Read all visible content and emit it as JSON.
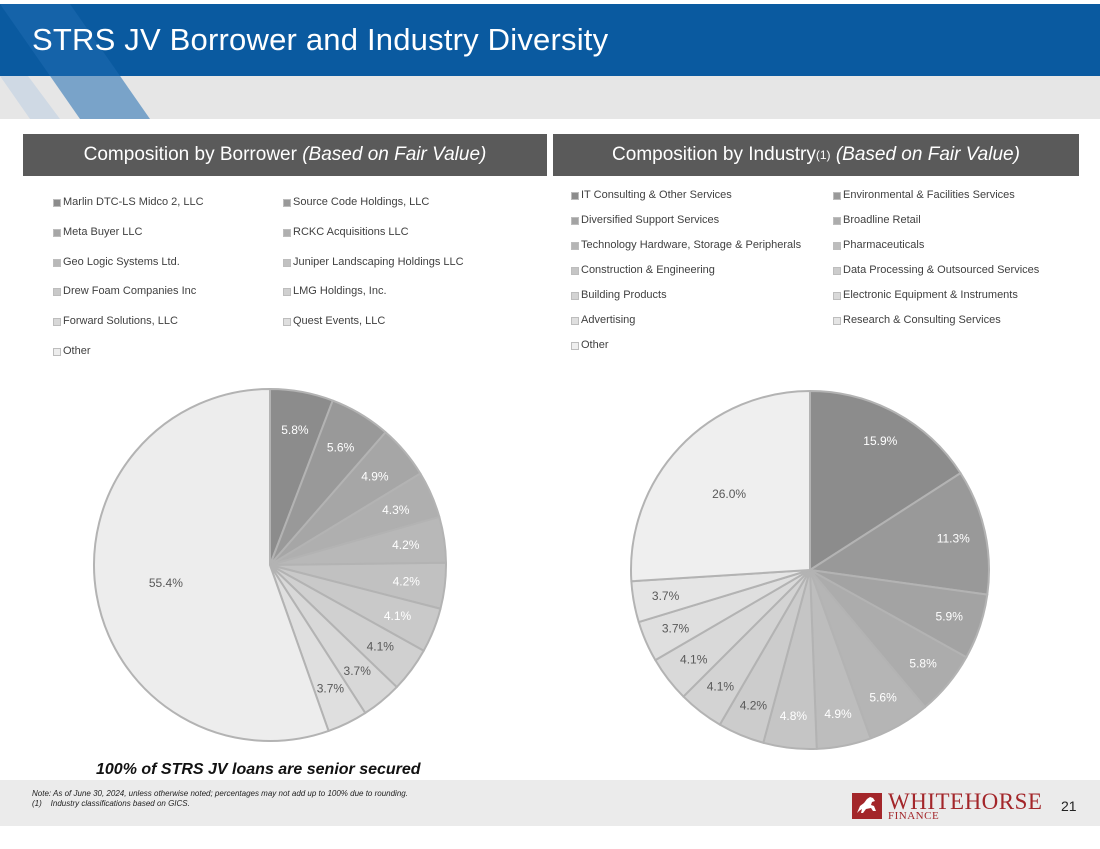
{
  "page": {
    "title": "STRS JV Borrower and Industry Diversity",
    "page_number": "21"
  },
  "left_panel": {
    "title_main": "Composition by Borrower ",
    "title_italic": "(Based on Fair Value)"
  },
  "right_panel": {
    "title_main": "Composition by Industry",
    "title_sup": "(1)",
    "title_italic": " (Based on Fair Value)"
  },
  "chart_data": [
    {
      "type": "pie",
      "title": "Composition by Borrower (Based on Fair Value)",
      "categories": [
        "Marlin DTC-LS Midco 2, LLC",
        "Source Code Holdings, LLC",
        "Meta Buyer LLC",
        "RCKC Acquisitions LLC",
        "Geo Logic Systems Ltd.",
        "Juniper Landscaping Holdings LLC",
        "Drew Foam Companies Inc",
        "LMG Holdings, Inc.",
        "Forward Solutions, LLC",
        "Quest Events, LLC",
        "Other"
      ],
      "values": [
        5.8,
        5.6,
        4.9,
        4.3,
        4.2,
        4.2,
        4.1,
        4.1,
        3.7,
        3.7,
        55.4
      ],
      "labels": [
        "5.8%",
        "5.6%",
        "4.9%",
        "4.3%",
        "4.2%",
        "4.2%",
        "4.1%",
        "4.1%",
        "3.7%",
        "3.7%",
        "55.4%"
      ],
      "colors": [
        "#8c8c8c",
        "#999999",
        "#a6a6a6",
        "#afafaf",
        "#b8b8b8",
        "#c1c1c1",
        "#c9c9c9",
        "#d0d0d0",
        "#d8d8d8",
        "#dfdfdf",
        "#ededed"
      ],
      "label_colors": [
        "#ffffff",
        "#ffffff",
        "#ffffff",
        "#ffffff",
        "#ffffff",
        "#ffffff",
        "#ffffff",
        "#595959",
        "#595959",
        "#595959",
        "#595959"
      ],
      "legend_position": "top"
    },
    {
      "type": "pie",
      "title": "Composition by Industry (Based on Fair Value)",
      "categories": [
        "IT Consulting & Other Services",
        "Environmental & Facilities Services",
        "Diversified Support Services",
        "Broadline Retail",
        "Technology Hardware, Storage & Peripherals",
        "Pharmaceuticals",
        "Construction & Engineering",
        "Data Processing & Outsourced Services",
        "Building Products",
        "Electronic Equipment & Instruments",
        "Advertising",
        "Research & Consulting Services",
        "Other"
      ],
      "values": [
        15.9,
        11.3,
        5.9,
        5.8,
        5.6,
        4.9,
        4.8,
        4.2,
        4.1,
        4.1,
        3.7,
        3.7,
        26.0
      ],
      "labels": [
        "15.9%",
        "11.3%",
        "5.9%",
        "5.8%",
        "5.6%",
        "4.9%",
        "4.8%",
        "4.2%",
        "4.1%",
        "4.1%",
        "3.7%",
        "3.7%",
        "26.0%"
      ],
      "colors": [
        "#8c8c8c",
        "#999999",
        "#a3a3a3",
        "#acacac",
        "#b5b5b5",
        "#bdbdbd",
        "#c5c5c5",
        "#cccccc",
        "#d3d3d3",
        "#d9d9d9",
        "#dfdfdf",
        "#e5e5e5",
        "#efefef"
      ],
      "label_colors": [
        "#ffffff",
        "#ffffff",
        "#ffffff",
        "#ffffff",
        "#ffffff",
        "#ffffff",
        "#ffffff",
        "#595959",
        "#595959",
        "#595959",
        "#595959",
        "#595959",
        "#595959"
      ],
      "legend_position": "top"
    }
  ],
  "senior_note": "100% of STRS JV loans are senior secured",
  "footnotes": {
    "line1": "Note: As of June 30, 2024, unless otherwise noted; percentages may not add up to 100% due to rounding.",
    "line2": "(1)    Industry classifications based on GICS."
  },
  "logo": {
    "name": "WHITEHORSE",
    "sub": "FINANCE"
  },
  "colors": {
    "header_blue": "#0a5aa0",
    "panel_gray": "#5a5a5a",
    "logo_red": "#a3262a"
  }
}
